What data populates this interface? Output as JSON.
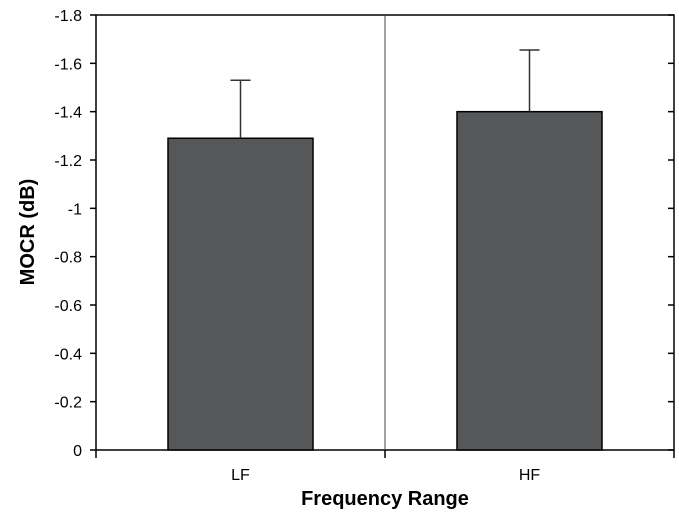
{
  "chart_data": {
    "type": "bar",
    "title": "",
    "xlabel": "Frequency Range",
    "ylabel": "MOCR (dB)",
    "categories": [
      "LF",
      "HF"
    ],
    "values": [
      -1.29,
      -1.4
    ],
    "error_upper": [
      -1.53,
      -1.655
    ],
    "ylim": [
      0,
      -1.8
    ],
    "y_axis_inverted": true,
    "yticks": [
      0,
      -0.2,
      -0.4,
      -0.6,
      -0.8,
      -1,
      -1.2,
      -1.4,
      -1.6,
      -1.8
    ],
    "ytick_labels": [
      "0",
      "-0.2",
      "-0.4",
      "-0.6",
      "-0.8",
      "-1",
      "-1.2",
      "-1.4",
      "-1.6",
      "-1.8"
    ],
    "grid": false,
    "category_divider": true,
    "legend": "none",
    "colors": {
      "bar": "#555759",
      "axis": "#000000",
      "divider": "#444444"
    }
  }
}
